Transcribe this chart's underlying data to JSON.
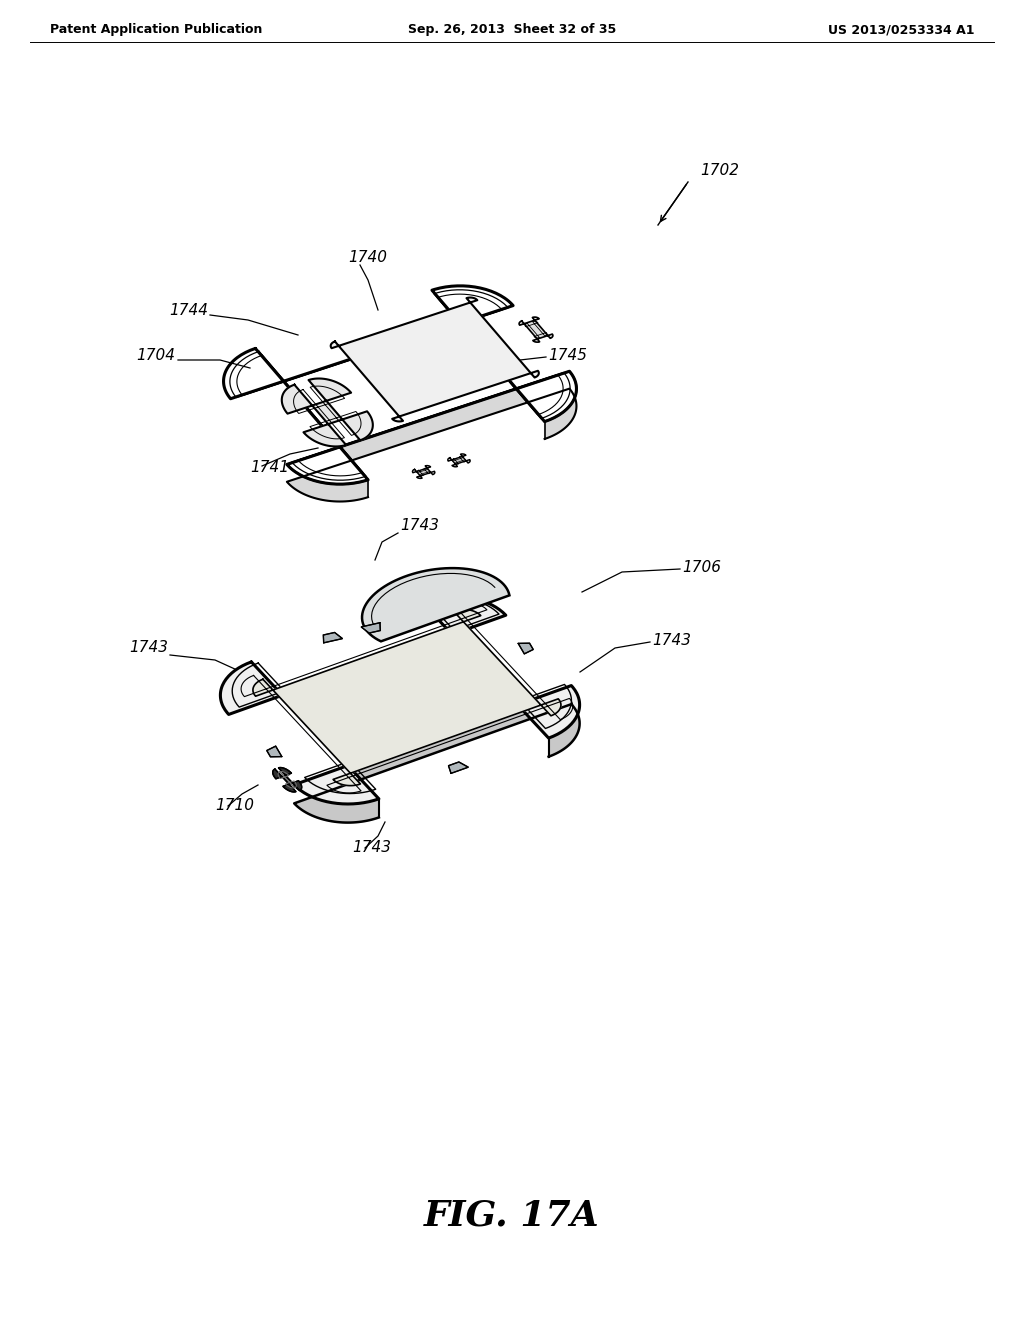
{
  "bg_color": "#ffffff",
  "header_left": "Patent Application Publication",
  "header_center": "Sep. 26, 2013  Sheet 32 of 35",
  "header_right": "US 2013/0253334 A1",
  "figure_label": "FIG. 17A",
  "text_color": "#000000",
  "line_color": "#000000",
  "top_device": {
    "ref_main": "1702",
    "ref_top": "1740",
    "ref_left_button": "1744",
    "ref_left_side": "1704",
    "ref_bottom": "1741",
    "ref_right_button": "1745"
  },
  "bottom_device": {
    "ref_main": "1706",
    "ref_clip1": "1743",
    "ref_clip2": "1743",
    "ref_clip3": "1743",
    "ref_clip4": "1743",
    "ref_port": "1710"
  }
}
